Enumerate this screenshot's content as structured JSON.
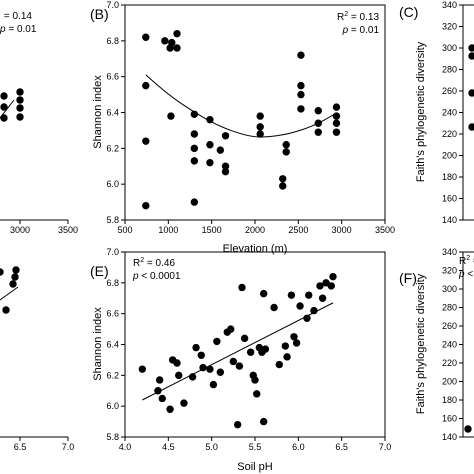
{
  "chart_data": [
    {
      "panel_label": "(B)",
      "type": "scatter",
      "xlabel": "Elevation (m)",
      "ylabel": "Shannon index",
      "xlim": [
        500,
        3500
      ],
      "ylim": [
        5.8,
        7.0
      ],
      "xticks": [
        "500",
        "1000",
        "1500",
        "2000",
        "2500",
        "3000",
        "3500"
      ],
      "yticks": [
        "5.8",
        "6.0",
        "6.2",
        "6.4",
        "6.6",
        "6.8",
        "7.0"
      ],
      "stat_r2_label": "R",
      "stat_r2_sup": "2",
      "stat_r2_value": " = 0.13",
      "stat_p_label": "p",
      "stat_p_value": " = 0.01",
      "fit": {
        "kind": "quadratic",
        "x": [
          740,
          1000,
          1300,
          1600,
          1900,
          2100,
          2400,
          2700,
          2950
        ],
        "y": [
          6.61,
          6.5,
          6.4,
          6.32,
          6.27,
          6.26,
          6.28,
          6.33,
          6.4
        ]
      },
      "points": [
        {
          "x": 740,
          "y": 6.82
        },
        {
          "x": 740,
          "y": 6.55
        },
        {
          "x": 740,
          "y": 6.24
        },
        {
          "x": 740,
          "y": 5.88
        },
        {
          "x": 960,
          "y": 6.8
        },
        {
          "x": 1020,
          "y": 6.76
        },
        {
          "x": 1040,
          "y": 6.79
        },
        {
          "x": 1100,
          "y": 6.84
        },
        {
          "x": 1100,
          "y": 6.76
        },
        {
          "x": 1030,
          "y": 6.38
        },
        {
          "x": 1300,
          "y": 6.39
        },
        {
          "x": 1300,
          "y": 6.28
        },
        {
          "x": 1300,
          "y": 6.2
        },
        {
          "x": 1300,
          "y": 6.13
        },
        {
          "x": 1300,
          "y": 5.9
        },
        {
          "x": 1480,
          "y": 6.36
        },
        {
          "x": 1480,
          "y": 6.22
        },
        {
          "x": 1480,
          "y": 6.12
        },
        {
          "x": 1600,
          "y": 6.19
        },
        {
          "x": 1660,
          "y": 6.27
        },
        {
          "x": 1660,
          "y": 6.1
        },
        {
          "x": 1660,
          "y": 6.07
        },
        {
          "x": 2060,
          "y": 6.38
        },
        {
          "x": 2060,
          "y": 6.32
        },
        {
          "x": 2060,
          "y": 6.28
        },
        {
          "x": 2320,
          "y": 6.03
        },
        {
          "x": 2320,
          "y": 5.99
        },
        {
          "x": 2360,
          "y": 6.22
        },
        {
          "x": 2360,
          "y": 6.18
        },
        {
          "x": 2530,
          "y": 6.72
        },
        {
          "x": 2530,
          "y": 6.55
        },
        {
          "x": 2530,
          "y": 6.5
        },
        {
          "x": 2530,
          "y": 6.42
        },
        {
          "x": 2730,
          "y": 6.41
        },
        {
          "x": 2730,
          "y": 6.34
        },
        {
          "x": 2730,
          "y": 6.29
        },
        {
          "x": 2940,
          "y": 6.43
        },
        {
          "x": 2940,
          "y": 6.38
        },
        {
          "x": 2940,
          "y": 6.34
        },
        {
          "x": 2940,
          "y": 6.29
        }
      ]
    },
    {
      "panel_label": "(E)",
      "type": "scatter",
      "xlabel": "Soil pH",
      "ylabel": "Shannon index",
      "xlim": [
        4.0,
        7.0
      ],
      "ylim": [
        5.8,
        7.0
      ],
      "xticks": [
        "4.0",
        "4.5",
        "5.0",
        "5.5",
        "6.0",
        "6.5",
        "7.0"
      ],
      "yticks": [
        "5.8",
        "6.0",
        "6.2",
        "6.4",
        "6.6",
        "6.8",
        "7.0"
      ],
      "stat_r2_label": "R",
      "stat_r2_sup": "2",
      "stat_r2_value": " = 0.46",
      "stat_p_label": "p",
      "stat_p_value": " < 0.0001",
      "fit": {
        "kind": "linear",
        "x": [
          4.2,
          6.4
        ],
        "y": [
          6.04,
          6.67
        ]
      },
      "points": [
        {
          "x": 4.2,
          "y": 6.24
        },
        {
          "x": 4.38,
          "y": 6.1
        },
        {
          "x": 4.4,
          "y": 6.17
        },
        {
          "x": 4.43,
          "y": 6.05
        },
        {
          "x": 4.52,
          "y": 5.98
        },
        {
          "x": 4.55,
          "y": 6.3
        },
        {
          "x": 4.6,
          "y": 6.28
        },
        {
          "x": 4.62,
          "y": 6.2
        },
        {
          "x": 4.68,
          "y": 6.02
        },
        {
          "x": 4.78,
          "y": 6.19
        },
        {
          "x": 4.82,
          "y": 6.38
        },
        {
          "x": 4.88,
          "y": 6.33
        },
        {
          "x": 4.9,
          "y": 6.25
        },
        {
          "x": 4.98,
          "y": 6.24
        },
        {
          "x": 5.02,
          "y": 6.14
        },
        {
          "x": 5.06,
          "y": 6.42
        },
        {
          "x": 5.1,
          "y": 6.22
        },
        {
          "x": 5.18,
          "y": 6.48
        },
        {
          "x": 5.22,
          "y": 6.5
        },
        {
          "x": 5.25,
          "y": 6.29
        },
        {
          "x": 5.3,
          "y": 5.88
        },
        {
          "x": 5.32,
          "y": 6.26
        },
        {
          "x": 5.35,
          "y": 6.77
        },
        {
          "x": 5.38,
          "y": 6.44
        },
        {
          "x": 5.45,
          "y": 6.35
        },
        {
          "x": 5.48,
          "y": 6.2
        },
        {
          "x": 5.5,
          "y": 6.17
        },
        {
          "x": 5.52,
          "y": 6.08
        },
        {
          "x": 5.55,
          "y": 6.38
        },
        {
          "x": 5.58,
          "y": 6.35
        },
        {
          "x": 5.6,
          "y": 5.9
        },
        {
          "x": 5.6,
          "y": 6.73
        },
        {
          "x": 5.62,
          "y": 6.37
        },
        {
          "x": 5.72,
          "y": 6.64
        },
        {
          "x": 5.78,
          "y": 6.27
        },
        {
          "x": 5.85,
          "y": 6.39
        },
        {
          "x": 5.87,
          "y": 6.32
        },
        {
          "x": 5.92,
          "y": 6.72
        },
        {
          "x": 5.95,
          "y": 6.45
        },
        {
          "x": 5.98,
          "y": 6.41
        },
        {
          "x": 6.02,
          "y": 6.65
        },
        {
          "x": 6.1,
          "y": 6.57
        },
        {
          "x": 6.12,
          "y": 6.72
        },
        {
          "x": 6.18,
          "y": 6.62
        },
        {
          "x": 6.25,
          "y": 6.78
        },
        {
          "x": 6.28,
          "y": 6.7
        },
        {
          "x": 6.32,
          "y": 6.8
        },
        {
          "x": 6.38,
          "y": 6.78
        },
        {
          "x": 6.4,
          "y": 6.84
        }
      ]
    }
  ],
  "fragments": {
    "top_left": {
      "r2_value": "= 0.14",
      "p_label": "p",
      "p_value": " = 0.01",
      "xticks": [
        "3000",
        "3500"
      ]
    },
    "bottom_left": {
      "xticks": [
        "6.5",
        "7.0"
      ]
    },
    "top_right": {
      "panel_label": "(C)",
      "ylabel": "Faith's phylogenetic diversity",
      "yticks": [
        "340",
        "320",
        "300",
        "280",
        "260",
        "240",
        "220",
        "200",
        "180",
        "160",
        "140"
      ]
    },
    "bottom_right": {
      "panel_label": "(F)",
      "ylabel": "Faith's phylogenetic diversity",
      "r2_label": "R",
      "r2_sup": "2",
      "r2_value": " =",
      "p_label": "p",
      "p_value": " <",
      "yticks": [
        "340",
        "320",
        "300",
        "280",
        "260",
        "240",
        "220",
        "200",
        "180",
        "160",
        "140"
      ]
    }
  }
}
